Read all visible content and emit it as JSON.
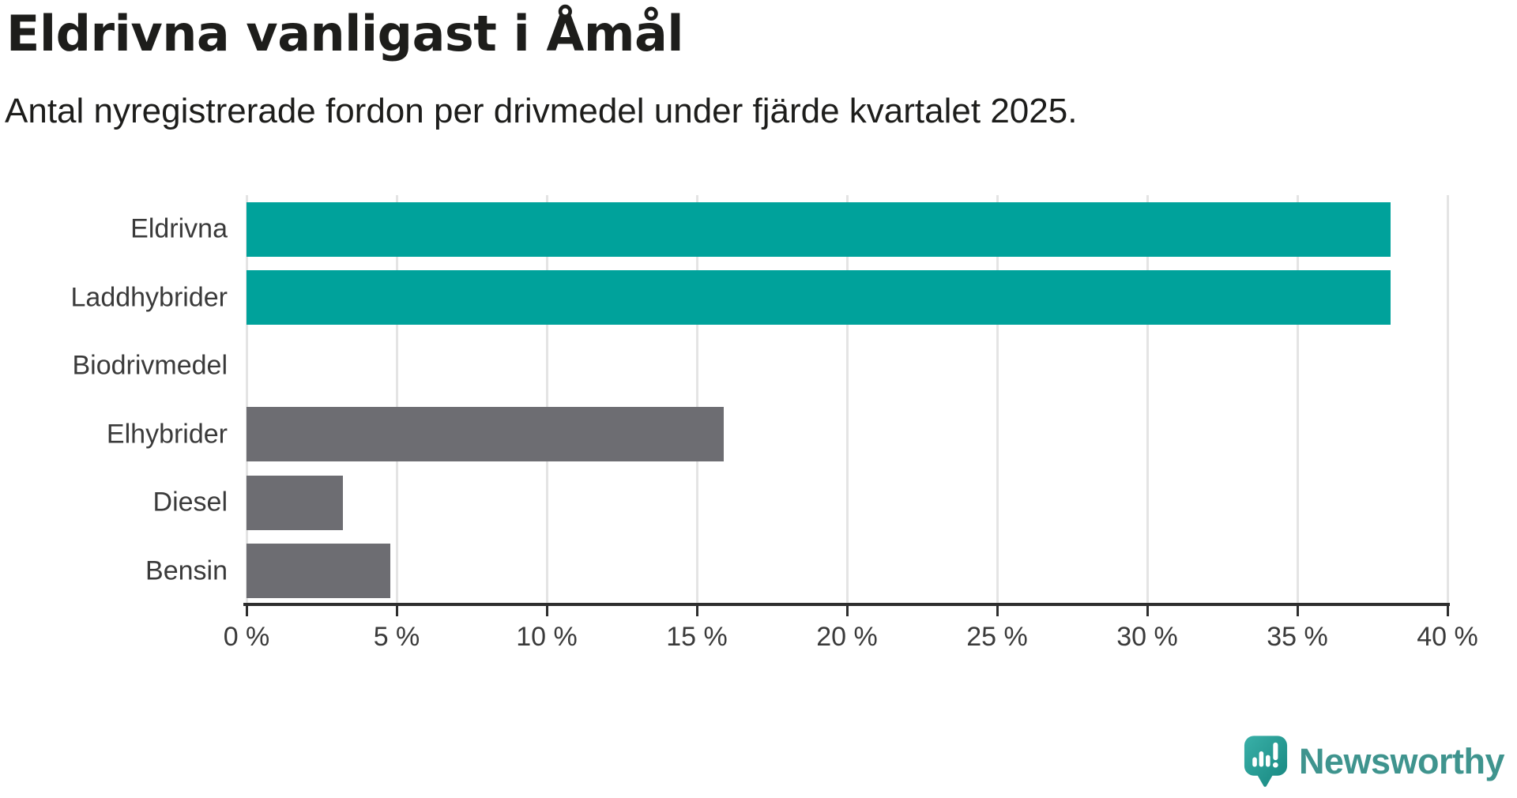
{
  "header": {
    "title": "Eldrivna vanligast i Åmål",
    "subtitle": "Antal nyregistrerade fordon per drivmedel under fjärde kvartalet 2025."
  },
  "chart_data": {
    "type": "bar",
    "orientation": "horizontal",
    "title": "Eldrivna vanligast i Åmål",
    "subtitle": "Antal nyregistrerade fordon per drivmedel under fjärde kvartalet 2025.",
    "categories": [
      "Eldrivna",
      "Laddhybrider",
      "Biodrivmedel",
      "Elhybrider",
      "Diesel",
      "Bensin"
    ],
    "values": [
      38.1,
      38.1,
      0,
      15.9,
      3.2,
      4.8
    ],
    "unit": "%",
    "xlim": [
      0,
      40
    ],
    "x_tick_values": [
      0,
      5,
      10,
      15,
      20,
      25,
      30,
      35,
      40
    ],
    "x_tick_labels": [
      "0 %",
      "5 %",
      "10 %",
      "15 %",
      "20 %",
      "25 %",
      "30 %",
      "35 %",
      "40 %"
    ],
    "bar_colors": [
      "#00a29b",
      "#00a29b",
      "#6d6d72",
      "#6d6d72",
      "#6d6d72",
      "#6d6d72"
    ],
    "highlight_color": "#00a29b",
    "default_color": "#6d6d72",
    "gridline_color": "#e4e4e4",
    "axis_color": "#2e2e2e",
    "grid": true,
    "legend": "none"
  },
  "branding": {
    "logo_text": "Newsworthy",
    "logo_text_color": "#3f948e",
    "logo_icon": "newsworthy-chart-bubble-icon",
    "logo_icon_color_top": "#39b0a8",
    "logo_icon_color_bottom": "#17867f"
  }
}
